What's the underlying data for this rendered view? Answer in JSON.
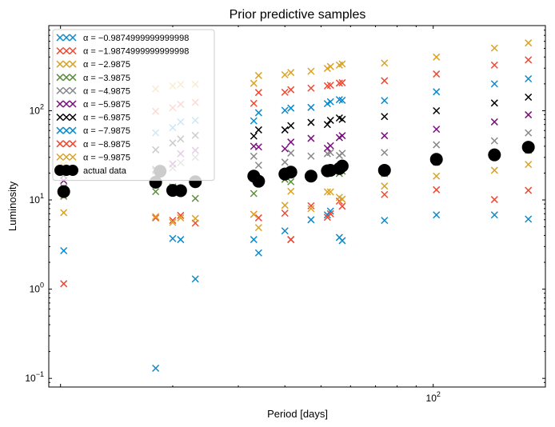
{
  "chart_data": {
    "type": "scatter",
    "title": "Prior predictive samples",
    "xlabel": "Period [days]",
    "ylabel": "Luminosity",
    "xscale": "log",
    "yscale": "log",
    "xlim": [
      9.3,
      200
    ],
    "ylim": [
      0.08,
      900
    ],
    "x_ticks": [
      {
        "value": 100,
        "label": "10^2"
      }
    ],
    "y_ticks": [
      {
        "value": 0.1,
        "label": "10^-1"
      },
      {
        "value": 1,
        "label": "10^0"
      },
      {
        "value": 10,
        "label": "10^1"
      },
      {
        "value": 100,
        "label": "10^2"
      }
    ],
    "legend_position": "upper-left",
    "x": [
      10.2,
      18.0,
      18.5,
      20.0,
      21.0,
      23.0,
      33.0,
      34.0,
      40.0,
      41.5,
      47.0,
      52.0,
      53.0,
      56.0,
      57.0,
      74.0,
      102.0,
      146.0,
      180.0
    ],
    "series": [
      {
        "name": "α = −0.9874999999999998",
        "color": "#0b8acb",
        "values": [
          2.7,
          0.13,
          null,
          3.7,
          3.6,
          1.3,
          3.6,
          2.55,
          4.5,
          3.6,
          6.0,
          6.8,
          7.5,
          3.8,
          3.5,
          5.9,
          6.8,
          6.8,
          6.1
        ]
      },
      {
        "name": "α = −1.9874999999999998",
        "color": "#ed4a35",
        "values": [
          1.15,
          6.3,
          null,
          5.9,
          6.7,
          5.5,
          6.9,
          6.3,
          7.1,
          3.6,
          8.6,
          6.4,
          7.0,
          9.7,
          8.5,
          11.5,
          13.0,
          10.1,
          12.8
        ]
      },
      {
        "name": "α = −2.9875",
        "color": "#daa326",
        "values": [
          7.2,
          6.5,
          null,
          5.6,
          6.3,
          6.2,
          6.9,
          4.9,
          8.7,
          12.5,
          8.0,
          12.3,
          12.3,
          10.7,
          10.2,
          14.3,
          18.5,
          21.5,
          25.0
        ]
      },
      {
        "name": "α = −3.9875",
        "color": "#5b8f3a",
        "values": [
          11.0,
          12.4,
          null,
          14.0,
          12.7,
          10.4,
          11.8,
          15.6,
          17.0,
          16.0,
          18.5,
          20.2,
          21.1,
          19.8,
          21.0,
          19.7,
          26.5,
          31.0,
          36.0
        ]
      },
      {
        "name": "α = −4.9875",
        "color": "#888888",
        "values": [
          13.8,
          21.1,
          null,
          22.8,
          26.2,
          30.0,
          30.9,
          24.5,
          26.5,
          33.5,
          31.0,
          33.0,
          34.0,
          31.5,
          33.3,
          34.0,
          41.5,
          46.0,
          56.5
        ]
      },
      {
        "name": "α = −5.9875",
        "color": "#7b0f7f",
        "values": [
          16.5,
          22.0,
          null,
          25.3,
          33.0,
          36.0,
          40.0,
          39.3,
          37.5,
          44.5,
          49.0,
          38.0,
          40.5,
          50.0,
          52.5,
          52.5,
          62.0,
          75.0,
          90.0
        ]
      },
      {
        "name": "α = −6.9875",
        "color": "#000000",
        "values": [
          18.8,
          36.5,
          null,
          43.5,
          48.2,
          53.0,
          52.0,
          61.0,
          61.0,
          68.0,
          74.0,
          70.0,
          78.0,
          83.0,
          80.0,
          86.0,
          100.0,
          122.0,
          142.0
        ]
      },
      {
        "name": "α = −7.9875",
        "color": "#0b8acb",
        "values": [
          22.5,
          56.5,
          null,
          64.5,
          75.0,
          78.0,
          77.0,
          95.0,
          101.0,
          107.0,
          109.0,
          120.0,
          126.0,
          133.0,
          131.0,
          130.0,
          163.0,
          200.0,
          228.0
        ]
      },
      {
        "name": "α = −8.9875",
        "color": "#ed4a35",
        "values": [
          23.5,
          98.5,
          null,
          108.0,
          118.0,
          124.0,
          121.0,
          160.0,
          161.0,
          172.0,
          179.0,
          190.0,
          193.0,
          204.0,
          206.0,
          217.0,
          258.0,
          325.0,
          371.0
        ]
      },
      {
        "name": "α = −9.9875",
        "color": "#daa326",
        "values": [
          25.0,
          176.0,
          null,
          190.0,
          197.0,
          198.0,
          203.0,
          248.0,
          253.0,
          268.0,
          277.0,
          298.0,
          313.0,
          325.0,
          334.0,
          342.0,
          400.0,
          504.0,
          575.0
        ]
      },
      {
        "name": "actual data",
        "color": "#000000",
        "marker": "o",
        "values": [
          12.4,
          15.8,
          21.0,
          12.8,
          12.7,
          16.0,
          18.5,
          16.2,
          19.5,
          20.5,
          18.5,
          21.2,
          21.5,
          22.5,
          24.0,
          21.5,
          28.5,
          32.0,
          39.0
        ]
      }
    ]
  }
}
